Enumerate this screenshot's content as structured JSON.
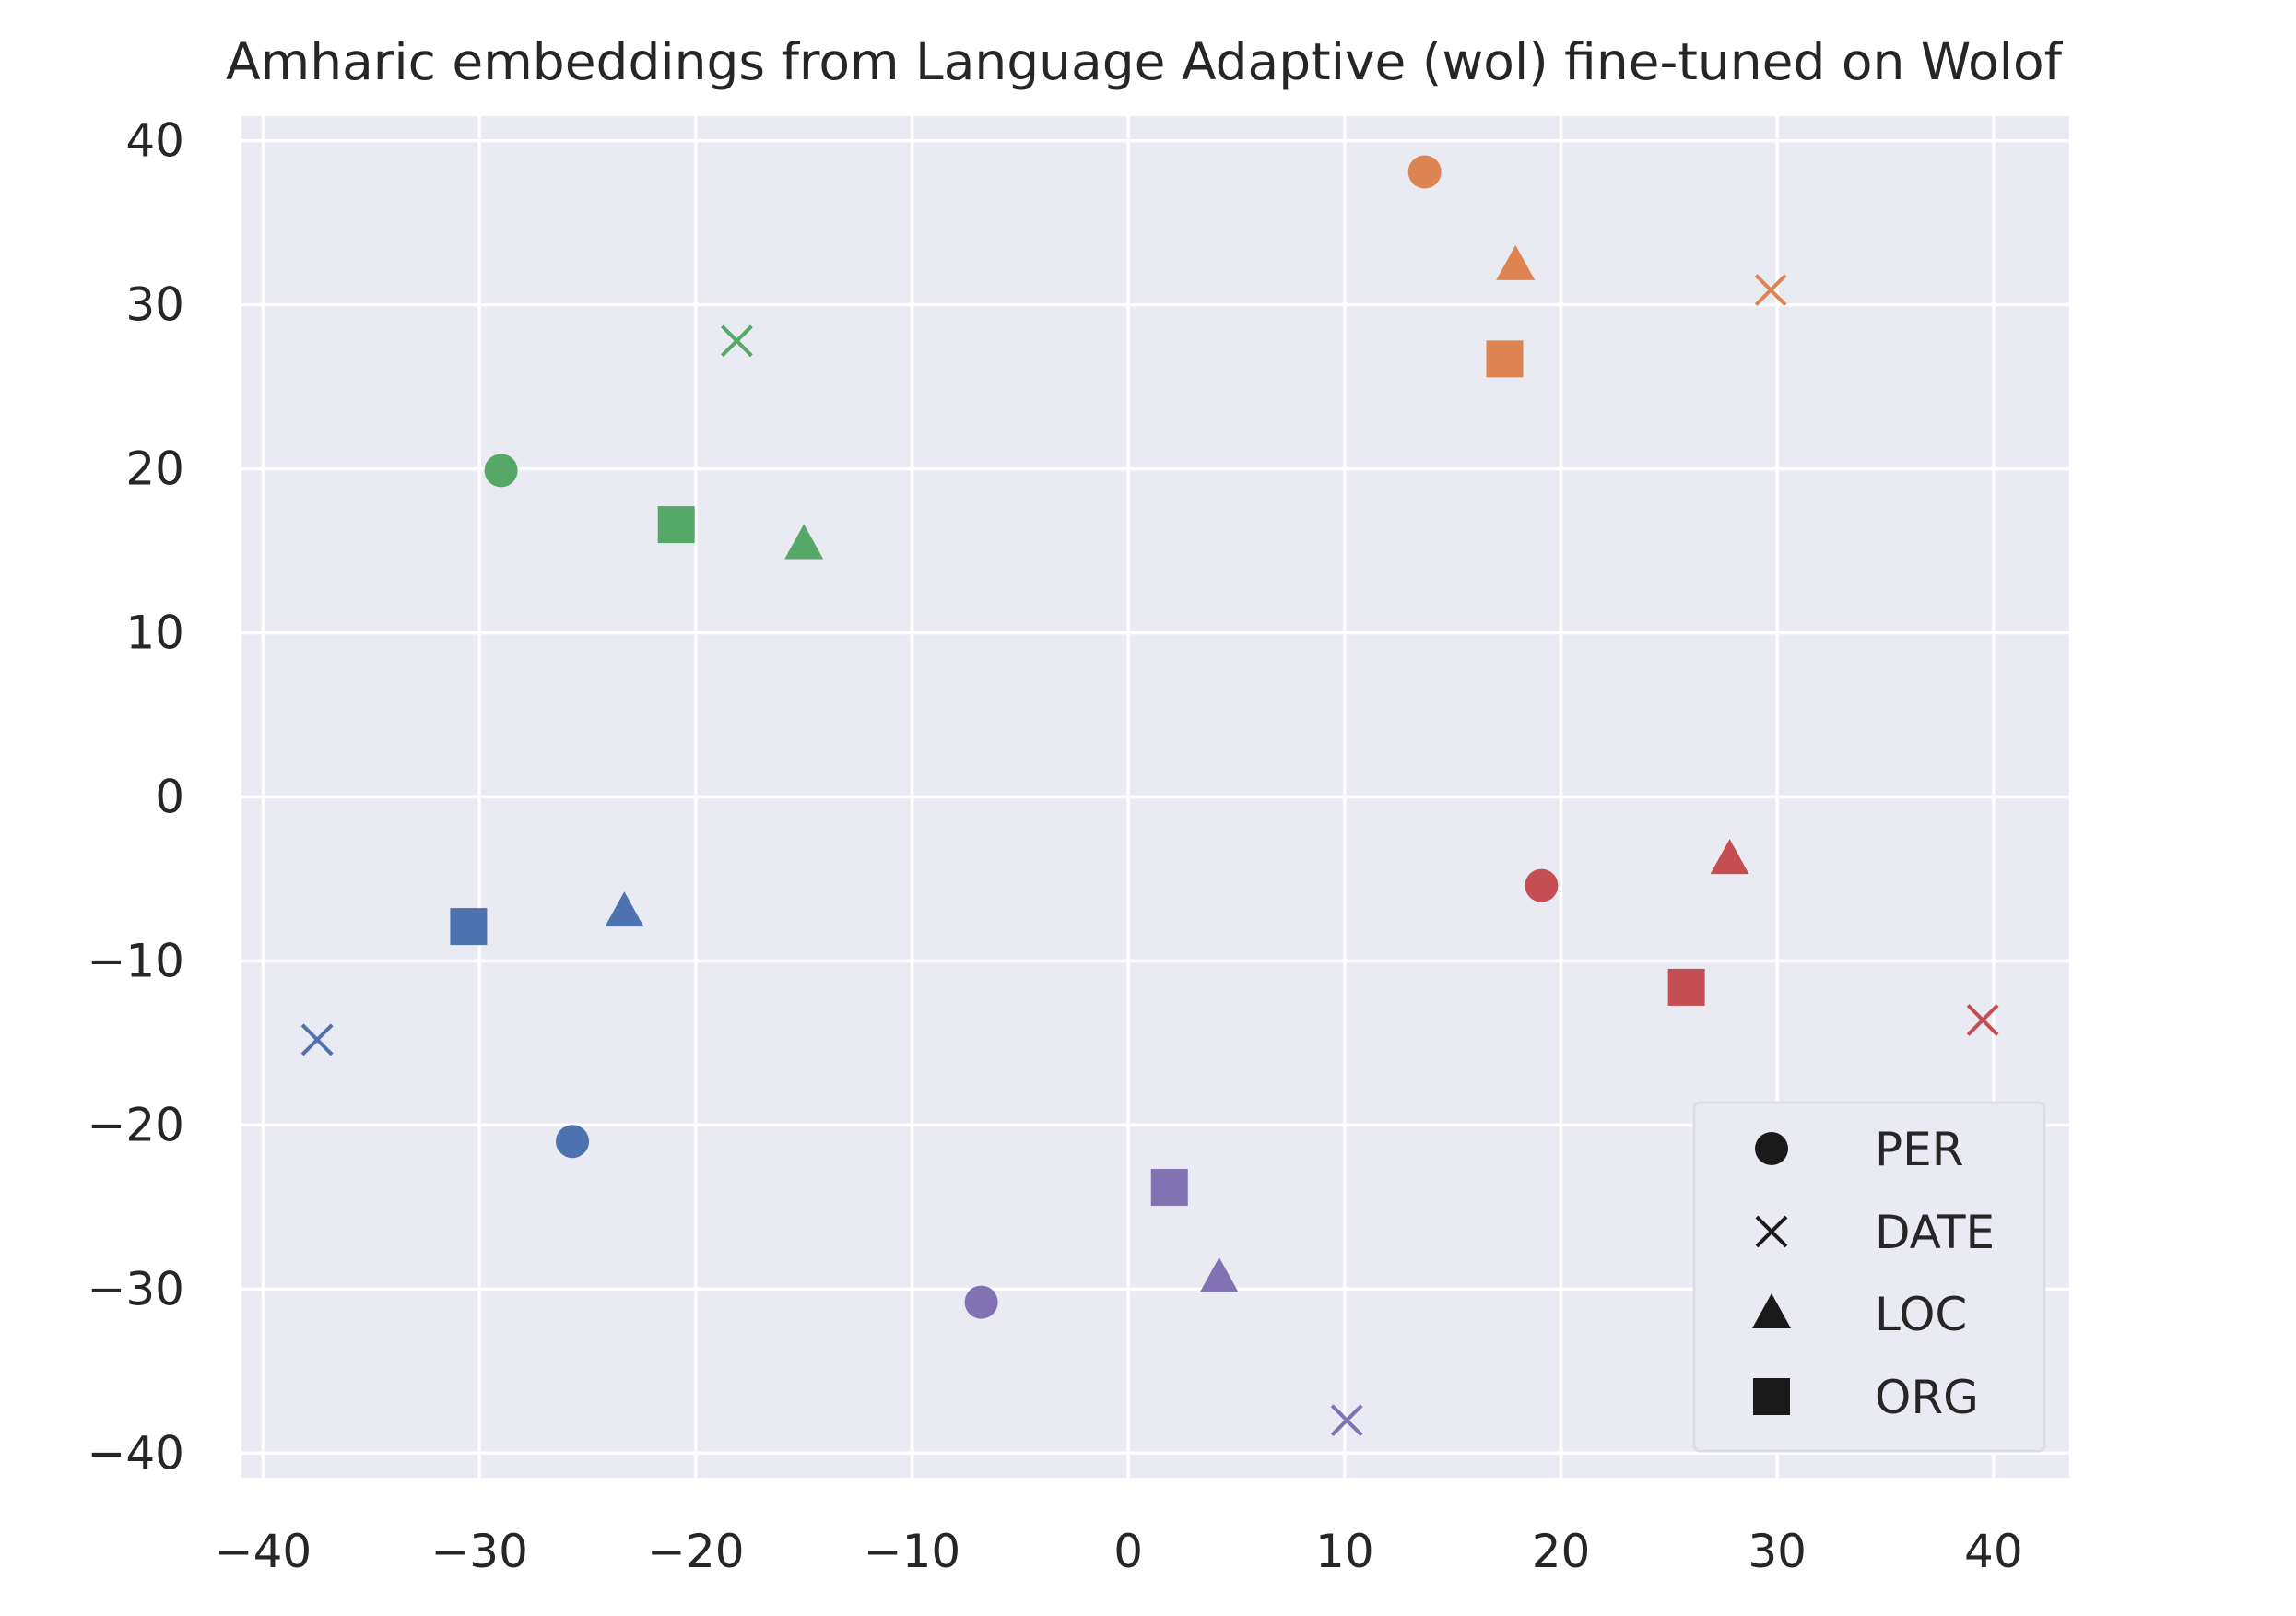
{
  "chart_data": {
    "type": "scatter",
    "title": "Amharic embeddings from Language Adaptive (wol) fine-tuned on Wolof",
    "xlabel": "",
    "ylabel": "",
    "xlim": [
      -41,
      43.5
    ],
    "ylim": [
      -41.5,
      41.5
    ],
    "xticks": [
      -40,
      -30,
      -20,
      -10,
      0,
      10,
      20,
      30,
      40
    ],
    "yticks": [
      -40,
      -30,
      -20,
      -10,
      0,
      10,
      20,
      30,
      40
    ],
    "xtick_labels": [
      "−40",
      "−30",
      "−20",
      "−10",
      "0",
      "10",
      "20",
      "30",
      "40"
    ],
    "ytick_labels": [
      "−40",
      "−30",
      "−20",
      "−10",
      "0",
      "10",
      "20",
      "30",
      "40"
    ],
    "grid": true,
    "background_color": "#eaeaf2",
    "grid_color": "#ffffff",
    "legend": {
      "position": "lower-right",
      "entries": [
        {
          "label": "PER",
          "marker": "circle"
        },
        {
          "label": "DATE",
          "marker": "x"
        },
        {
          "label": "LOC",
          "marker": "triangle"
        },
        {
          "label": "ORG",
          "marker": "square"
        }
      ]
    },
    "groups": [
      {
        "color": "#4c72b0",
        "points": [
          {
            "x": -25.7,
            "y": -21.0,
            "marker": "circle"
          },
          {
            "x": -37.5,
            "y": -14.8,
            "marker": "x"
          },
          {
            "x": -23.3,
            "y": -7.0,
            "marker": "triangle"
          },
          {
            "x": -30.5,
            "y": -7.9,
            "marker": "square"
          }
        ]
      },
      {
        "color": "#dd8452",
        "points": [
          {
            "x": 13.7,
            "y": 38.1,
            "marker": "circle"
          },
          {
            "x": 29.7,
            "y": 30.9,
            "marker": "x"
          },
          {
            "x": 17.9,
            "y": 32.4,
            "marker": "triangle"
          },
          {
            "x": 17.4,
            "y": 26.7,
            "marker": "square"
          }
        ]
      },
      {
        "color": "#55a868",
        "points": [
          {
            "x": -29.0,
            "y": 19.9,
            "marker": "circle"
          },
          {
            "x": -18.1,
            "y": 27.8,
            "marker": "x"
          },
          {
            "x": -15.0,
            "y": 15.4,
            "marker": "triangle"
          },
          {
            "x": -20.9,
            "y": 16.6,
            "marker": "square"
          }
        ]
      },
      {
        "color": "#c44e52",
        "points": [
          {
            "x": 19.1,
            "y": -5.4,
            "marker": "circle"
          },
          {
            "x": 39.5,
            "y": -13.6,
            "marker": "x"
          },
          {
            "x": 27.8,
            "y": -3.8,
            "marker": "triangle"
          },
          {
            "x": 25.8,
            "y": -11.6,
            "marker": "square"
          }
        ]
      },
      {
        "color": "#8172b3",
        "points": [
          {
            "x": -6.8,
            "y": -30.8,
            "marker": "circle"
          },
          {
            "x": 10.1,
            "y": -38.0,
            "marker": "x"
          },
          {
            "x": 4.2,
            "y": -29.3,
            "marker": "triangle"
          },
          {
            "x": 1.9,
            "y": -23.8,
            "marker": "square"
          }
        ]
      }
    ]
  }
}
